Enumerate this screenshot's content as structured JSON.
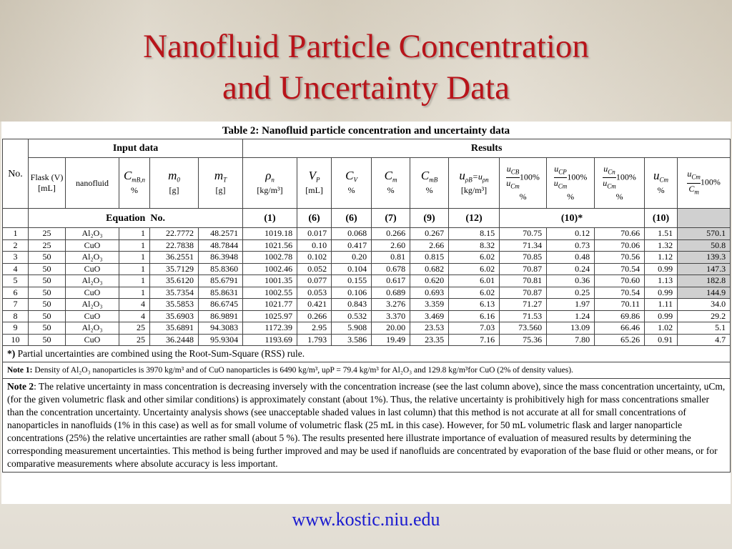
{
  "title_lines": [
    "Nanofluid Particle Concentration",
    "and Uncertainty Data"
  ],
  "table": {
    "caption": "Table 2: Nanofluid particle concentration and uncertainty data",
    "groups": {
      "no": "No.",
      "input": "Input data",
      "results": "Results"
    },
    "headers": [
      {
        "label": "Flask (V) [mL]"
      },
      {
        "label": "nanofluid"
      },
      {
        "sym": "C",
        "sub": "mB,n",
        "unit": "%"
      },
      {
        "sym": "m",
        "sub": "0",
        "unit": "[g]"
      },
      {
        "sym": "m",
        "sub": "T",
        "unit": "[g]"
      },
      {
        "sym": "ρ",
        "sub": "n",
        "unit": "[kg/m³]"
      },
      {
        "sym": "V",
        "sub": "P",
        "unit": "[mL]"
      },
      {
        "sym": "C",
        "sub": "V",
        "unit": "%"
      },
      {
        "sym": "C",
        "sub": "m",
        "unit": "%"
      },
      {
        "sym": "C",
        "sub": "mB",
        "unit": "%"
      },
      {
        "sym": "u",
        "sub": "ρB",
        "sym2": "=u",
        "sub2": "ρn",
        "unit": "[kg/m³]"
      },
      {
        "sym": "u",
        "sub": "CB",
        "den_sym": "u",
        "den_sub": "Cm",
        "factor": "100%",
        "unit": "%"
      },
      {
        "sym": "u",
        "sub": "CP",
        "den_sym": "u",
        "den_sub": "Cm",
        "factor": "100%",
        "unit": "%"
      },
      {
        "sym": "u",
        "sub": "Cn",
        "den_sym": "u",
        "den_sub": "Cm",
        "factor": "100%",
        "unit": "%"
      },
      {
        "sym": "u",
        "sub": "Cm",
        "unit": "%"
      },
      {
        "sym": "u",
        "sub": "Cm",
        "den_sym": "C",
        "den_sub": "m",
        "factor": "100%"
      }
    ],
    "equation_label": "Equation  No.",
    "equations": [
      "(1)",
      "(6)",
      "(6)",
      "(7)",
      "(9)",
      "(12)",
      "(10)*",
      "(10)"
    ],
    "rows": [
      [
        "1",
        "25",
        "Al₂O₃",
        "1",
        "22.7772",
        "48.2571",
        "1019.18",
        "0.017",
        "0.068",
        "0.266",
        "0.267",
        "8.15",
        "70.75",
        "0.12",
        "70.66",
        "1.51",
        "570.1"
      ],
      [
        "2",
        "25",
        "CuO",
        "1",
        "22.7838",
        "48.7844",
        "1021.56",
        "0.10",
        "0.417",
        "2.60",
        "2.66",
        "8.32",
        "71.34",
        "0.73",
        "70.06",
        "1.32",
        "50.8"
      ],
      [
        "3",
        "50",
        "Al₂O₃",
        "1",
        "36.2551",
        "86.3948",
        "1002.78",
        "0.102",
        "0.20",
        "0.81",
        "0.815",
        "6.02",
        "70.85",
        "0.48",
        "70.56",
        "1.12",
        "139.3"
      ],
      [
        "4",
        "50",
        "CuO",
        "1",
        "35.7129",
        "85.8360",
        "1002.46",
        "0.052",
        "0.104",
        "0.678",
        "0.682",
        "6.02",
        "70.87",
        "0.24",
        "70.54",
        "0.99",
        "147.3"
      ],
      [
        "5",
        "50",
        "Al₂O₃",
        "1",
        "35.6120",
        "85.6791",
        "1001.35",
        "0.077",
        "0.155",
        "0.617",
        "0.620",
        "6.01",
        "70.81",
        "0.36",
        "70.60",
        "1.13",
        "182.8"
      ],
      [
        "6",
        "50",
        "CuO",
        "1",
        "35.7354",
        "85.8631",
        "1002.55",
        "0.053",
        "0.106",
        "0.689",
        "0.693",
        "6.02",
        "70.87",
        "0.25",
        "70.54",
        "0.99",
        "144.9"
      ],
      [
        "7",
        "50",
        "Al₂O₃",
        "4",
        "35.5853",
        "86.6745",
        "1021.77",
        "0.421",
        "0.843",
        "3.276",
        "3.359",
        "6.13",
        "71.27",
        "1.97",
        "70.11",
        "1.11",
        "34.0"
      ],
      [
        "8",
        "50",
        "CuO",
        "4",
        "35.6903",
        "86.9891",
        "1025.97",
        "0.266",
        "0.532",
        "3.370",
        "3.469",
        "6.16",
        "71.53",
        "1.24",
        "69.86",
        "0.99",
        "29.2"
      ],
      [
        "9",
        "50",
        "Al₂O₃",
        "25",
        "35.6891",
        "94.3083",
        "1172.39",
        "2.95",
        "5.908",
        "20.00",
        "23.53",
        "7.03",
        "73.560",
        "13.09",
        "66.46",
        "1.02",
        "5.1"
      ],
      [
        "10",
        "50",
        "CuO",
        "25",
        "36.2448",
        "95.9304",
        "1193.69",
        "1.793",
        "3.586",
        "19.49",
        "23.35",
        "7.16",
        "75.36",
        "7.80",
        "65.26",
        "0.91",
        "4.7"
      ]
    ]
  },
  "notes": {
    "rss": {
      "label": "*)",
      "text": " Partial uncertainties are combined using the Root-Sum-Square (RSS) rule."
    },
    "note1": {
      "label": "Note 1:",
      "text": " Density of Al₂O₃ nanoparticles is 3970 kg/m³ and of CuO nanoparticles is 6490 kg/m³,  uρP =  79.4 kg/m³ for Al₂O₃  and 129.8 kg/m³for CuO (2% of density values)."
    },
    "note2": {
      "label": "Note 2",
      "text": ": The relative uncertainty in mass concentration is decreasing inversely with the concentration increase (see the last column above), since the mass concentration uncertainty, uCm, (for the given volumetric flask and other similar conditions) is approximately constant (about 1%). Thus, the relative uncertainty is prohibitively high for mass concentrations smaller than the concentration uncertainty. Uncertainty analysis shows (see unacceptable shaded values in last column) that this method is not accurate at all for small concentrations of nanoparticles in nanofluids (1% in this case) as well as  for small volume of volumetric flask (25 mL  in this case). However, for 50 mL volumetric flask and larger nanoparticle concentrations (25%) the relative uncertainties are rather small (about 5 %). The results presented here illustrate importance of evaluation of measured results by determining the corresponding measurement uncertainties. This method is being further improved and may be used if nanofluids are concentrated by evaporation of the base fluid or other means, or for comparative measurements where absolute accuracy is less important."
    }
  },
  "url": "www.kostic.niu.edu"
}
